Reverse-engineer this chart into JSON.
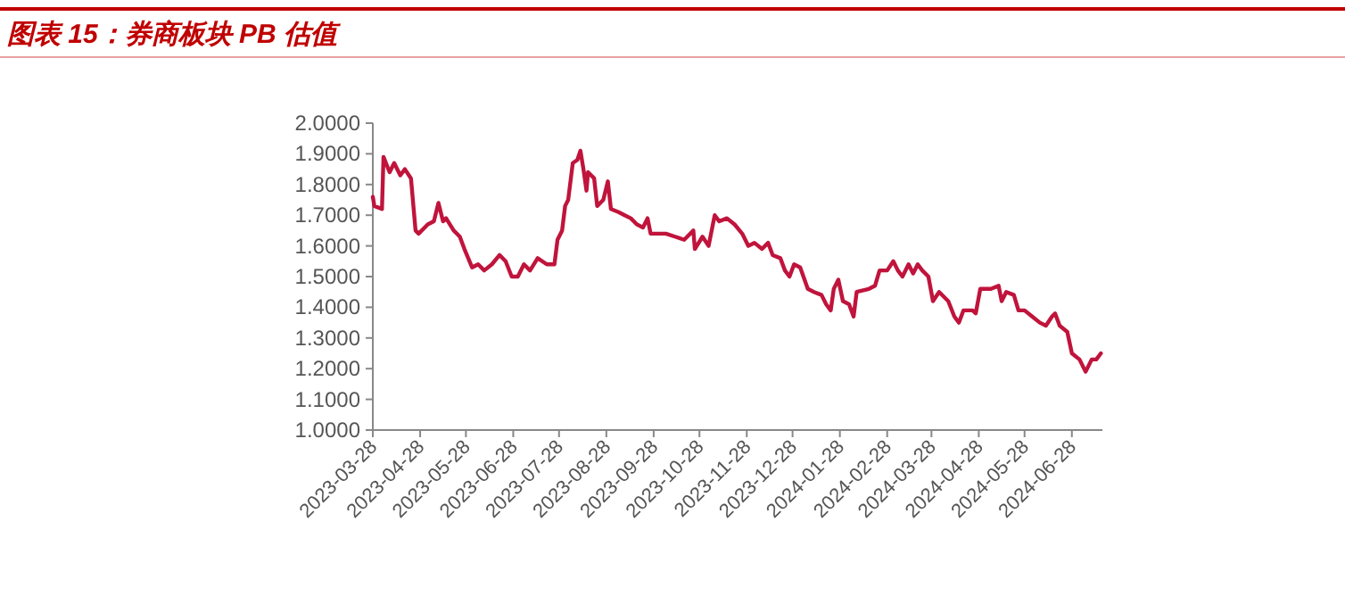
{
  "chart_data": {
    "type": "line",
    "title": "图表 15：券商板块 PB 估值",
    "x": [
      "2023-03-28",
      "2023-03-29",
      "2023-04-03",
      "2023-04-04",
      "2023-04-08",
      "2023-04-11",
      "2023-04-15",
      "2023-04-18",
      "2023-04-22",
      "2023-04-25",
      "2023-04-27",
      "2023-05-03",
      "2023-05-07",
      "2023-05-10",
      "2023-05-13",
      "2023-05-15",
      "2023-05-20",
      "2023-05-24",
      "2023-05-27",
      "2023-06-01",
      "2023-06-05",
      "2023-06-09",
      "2023-06-14",
      "2023-06-19",
      "2023-06-23",
      "2023-06-27",
      "2023-07-01",
      "2023-07-05",
      "2023-07-09",
      "2023-07-14",
      "2023-07-20",
      "2023-07-25",
      "2023-07-27",
      "2023-07-30",
      "2023-08-01",
      "2023-08-03",
      "2023-08-06",
      "2023-08-09",
      "2023-08-11",
      "2023-08-13",
      "2023-08-15",
      "2023-08-16",
      "2023-08-20",
      "2023-08-22",
      "2023-08-26",
      "2023-08-29",
      "2023-08-31",
      "2023-09-05",
      "2023-09-09",
      "2023-09-13",
      "2023-09-17",
      "2023-09-21",
      "2023-09-24",
      "2023-09-26",
      "2023-10-06",
      "2023-10-12",
      "2023-10-18",
      "2023-10-24",
      "2023-10-25",
      "2023-10-30",
      "2023-11-03",
      "2023-11-07",
      "2023-11-10",
      "2023-11-15",
      "2023-11-20",
      "2023-11-25",
      "2023-11-29",
      "2023-12-03",
      "2023-12-08",
      "2023-12-12",
      "2023-12-15",
      "2023-12-20",
      "2023-12-23",
      "2023-12-26",
      "2023-12-29",
      "2024-01-02",
      "2024-01-07",
      "2024-01-11",
      "2024-01-16",
      "2024-01-19",
      "2024-01-22",
      "2024-01-24",
      "2024-01-27",
      "2024-01-30",
      "2024-02-03",
      "2024-02-06",
      "2024-02-08",
      "2024-02-16",
      "2024-02-20",
      "2024-02-23",
      "2024-02-28",
      "2024-03-03",
      "2024-03-06",
      "2024-03-09",
      "2024-03-13",
      "2024-03-16",
      "2024-03-19",
      "2024-03-22",
      "2024-03-26",
      "2024-03-29",
      "2024-04-02",
      "2024-04-08",
      "2024-04-12",
      "2024-04-15",
      "2024-04-18",
      "2024-04-24",
      "2024-04-26",
      "2024-04-29",
      "2024-05-06",
      "2024-05-11",
      "2024-05-13",
      "2024-05-16",
      "2024-05-21",
      "2024-05-24",
      "2024-05-28",
      "2024-06-02",
      "2024-06-07",
      "2024-06-11",
      "2024-06-15",
      "2024-06-17",
      "2024-06-20",
      "2024-06-25",
      "2024-06-28",
      "2024-07-03",
      "2024-07-07",
      "2024-07-11",
      "2024-07-14",
      "2024-07-17"
    ],
    "series": [
      {
        "color": "#c0143c",
        "values": [
          1.76,
          1.73,
          1.72,
          1.89,
          1.84,
          1.87,
          1.83,
          1.85,
          1.82,
          1.65,
          1.64,
          1.67,
          1.68,
          1.74,
          1.68,
          1.69,
          1.65,
          1.63,
          1.59,
          1.53,
          1.54,
          1.52,
          1.54,
          1.57,
          1.55,
          1.5,
          1.5,
          1.54,
          1.52,
          1.56,
          1.54,
          1.54,
          1.62,
          1.65,
          1.73,
          1.75,
          1.87,
          1.88,
          1.91,
          1.85,
          1.78,
          1.84,
          1.82,
          1.73,
          1.75,
          1.81,
          1.72,
          1.71,
          1.7,
          1.69,
          1.67,
          1.66,
          1.69,
          1.64,
          1.64,
          1.63,
          1.62,
          1.65,
          1.59,
          1.63,
          1.6,
          1.7,
          1.68,
          1.69,
          1.67,
          1.64,
          1.6,
          1.61,
          1.59,
          1.61,
          1.57,
          1.56,
          1.52,
          1.5,
          1.54,
          1.53,
          1.46,
          1.45,
          1.44,
          1.41,
          1.39,
          1.46,
          1.49,
          1.42,
          1.41,
          1.37,
          1.45,
          1.46,
          1.47,
          1.52,
          1.52,
          1.55,
          1.52,
          1.5,
          1.54,
          1.51,
          1.54,
          1.52,
          1.5,
          1.42,
          1.45,
          1.42,
          1.37,
          1.35,
          1.39,
          1.39,
          1.38,
          1.46,
          1.46,
          1.47,
          1.42,
          1.45,
          1.44,
          1.39,
          1.39,
          1.37,
          1.35,
          1.34,
          1.37,
          1.38,
          1.34,
          1.32,
          1.25,
          1.23,
          1.19,
          1.23,
          1.23,
          1.25
        ]
      }
    ],
    "xlim": [
      "2023-03-28",
      "2024-07-18"
    ],
    "xticks": [
      "2023-03-28",
      "2023-04-28",
      "2023-05-28",
      "2023-06-28",
      "2023-07-28",
      "2023-08-28",
      "2023-09-28",
      "2023-10-28",
      "2023-11-28",
      "2023-12-28",
      "2024-01-28",
      "2024-02-28",
      "2024-03-28",
      "2024-04-28",
      "2024-05-28",
      "2024-06-28"
    ],
    "ylim": [
      1.0,
      2.0
    ],
    "yticks": [
      {
        "value": 1.0,
        "label": "1.0000"
      },
      {
        "value": 1.1,
        "label": "1.1000"
      },
      {
        "value": 1.2,
        "label": "1.2000"
      },
      {
        "value": 1.3,
        "label": "1.3000"
      },
      {
        "value": 1.4,
        "label": "1.4000"
      },
      {
        "value": 1.5,
        "label": "1.5000"
      },
      {
        "value": 1.6,
        "label": "1.6000"
      },
      {
        "value": 1.7,
        "label": "1.7000"
      },
      {
        "value": 1.8,
        "label": "1.8000"
      },
      {
        "value": 1.9,
        "label": "1.9000"
      },
      {
        "value": 2.0,
        "label": "2.0000"
      }
    ]
  }
}
